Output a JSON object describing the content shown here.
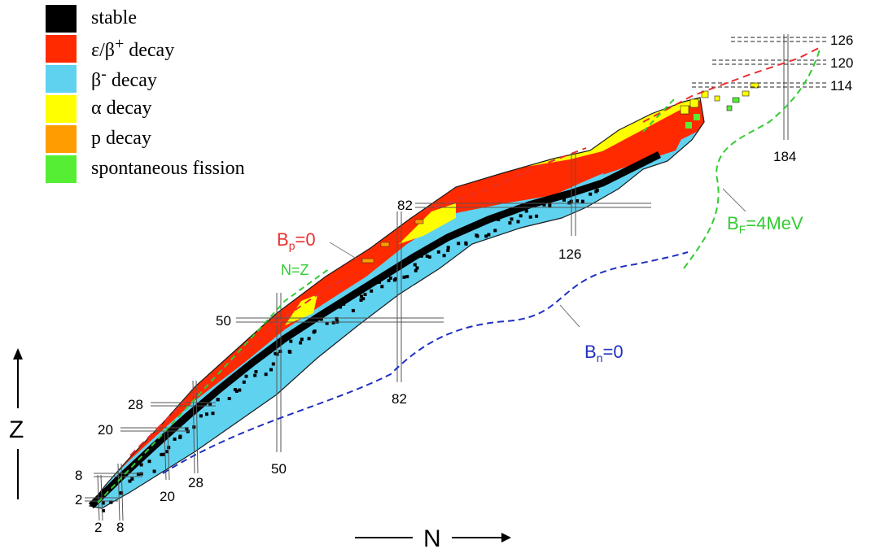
{
  "legend": [
    {
      "label_html": "stable",
      "color": "#000000"
    },
    {
      "label_html": "ε/β<sup>+</sup> decay",
      "color": "#ff2a00"
    },
    {
      "label_html": "β<sup>-</sup> decay",
      "color": "#5fd2f0"
    },
    {
      "label_html": "α decay",
      "color": "#ffff00"
    },
    {
      "label_html": "p decay",
      "color": "#ff9c00"
    },
    {
      "label_html": "spontaneous fission",
      "color": "#55ee33"
    }
  ],
  "axes": {
    "x_label": "N",
    "y_label": "Z"
  },
  "magic_numbers": {
    "neutron": [
      "2",
      "8",
      "20",
      "28",
      "50",
      "82",
      "126",
      "184"
    ],
    "proton": [
      "2",
      "8",
      "20",
      "28",
      "50",
      "82",
      "114",
      "120",
      "126"
    ]
  },
  "curves": {
    "proton_dripline": {
      "label": "B",
      "sub": "p",
      "suffix": "=0",
      "color": "#e83030"
    },
    "n_equals_z": {
      "label": "N=Z",
      "color": "#33cc33"
    },
    "neutron_dripline": {
      "label": "B",
      "sub": "n",
      "suffix": "=0",
      "color": "#2030c0"
    },
    "fission_barrier": {
      "label": "B",
      "sub": "F",
      "suffix": "=4MeV",
      "color": "#33cc33"
    }
  }
}
